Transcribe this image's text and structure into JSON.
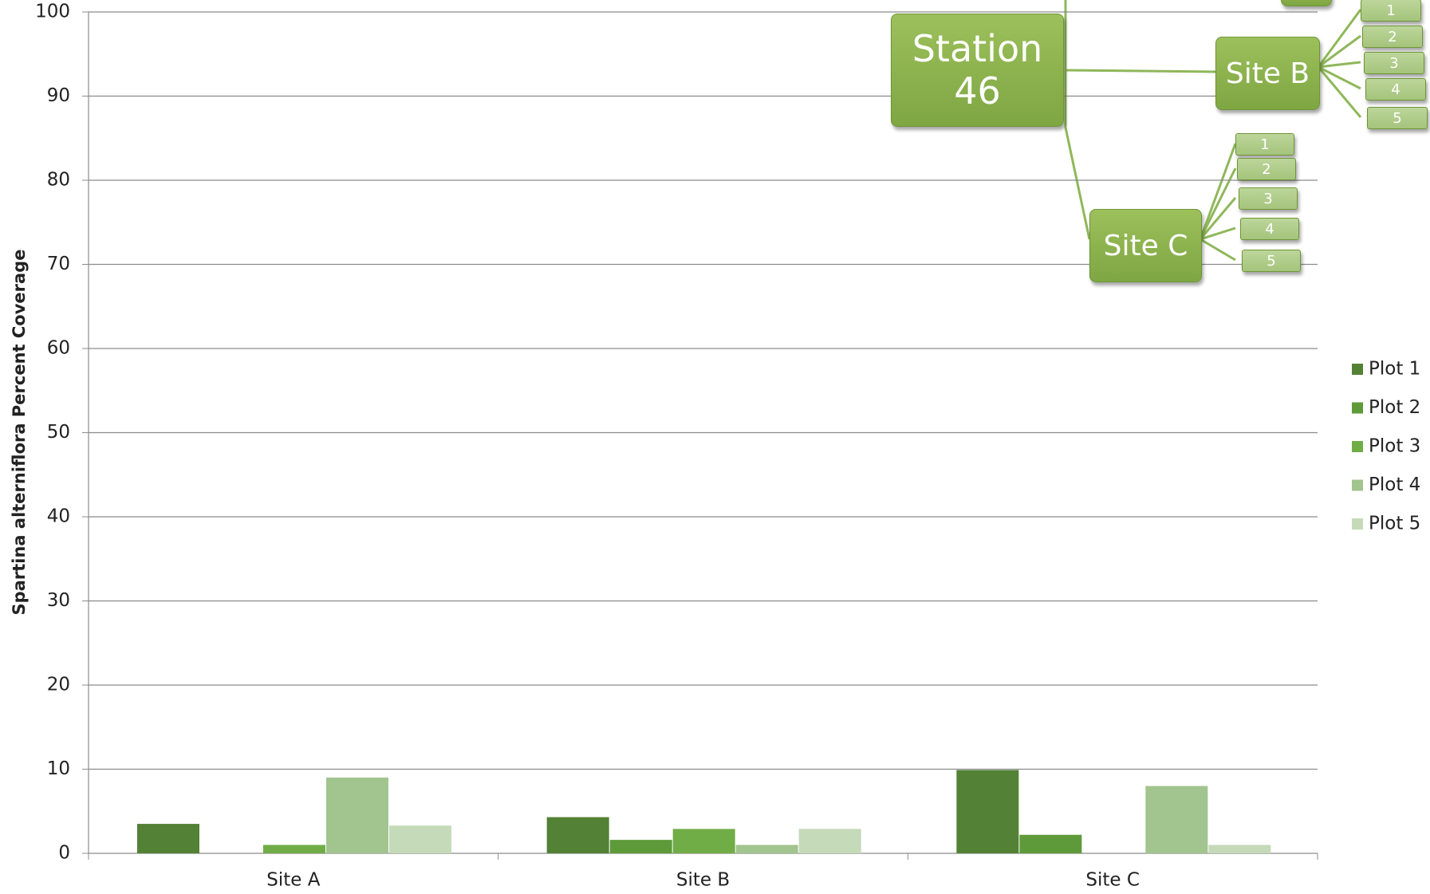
{
  "chart_data": {
    "type": "bar",
    "y_label": "Spartina alterniflora Percent Coverage",
    "categories": [
      "Site A",
      "Site B",
      "Site C"
    ],
    "series": [
      {
        "name": "Plot 1",
        "color": "#538135",
        "values": [
          3.5,
          4.3,
          9.9
        ]
      },
      {
        "name": "Plot 2",
        "color": "#5e9a3a",
        "values": [
          0,
          1.6,
          2.2
        ]
      },
      {
        "name": "Plot 3",
        "color": "#70ad47",
        "values": [
          1,
          2.9,
          0
        ]
      },
      {
        "name": "Plot 4",
        "color": "#a2c48e",
        "values": [
          9,
          1.0,
          8.0
        ]
      },
      {
        "name": "Plot 5",
        "color": "#c5dab9",
        "values": [
          3.3,
          2.9,
          1.0
        ]
      }
    ],
    "ylim": [
      0,
      100
    ],
    "yticks": [
      0,
      10,
      20,
      30,
      40,
      50,
      60,
      70,
      80,
      90,
      100
    ],
    "grid": true,
    "legend": "right"
  },
  "diagram": {
    "root": "Station 46",
    "nodes": [
      {
        "label": "Site B",
        "plots": [
          "1",
          "2",
          "3",
          "4",
          "5"
        ]
      },
      {
        "label": "Site C",
        "plots": [
          "1",
          "2",
          "3",
          "4",
          "5"
        ]
      }
    ]
  }
}
